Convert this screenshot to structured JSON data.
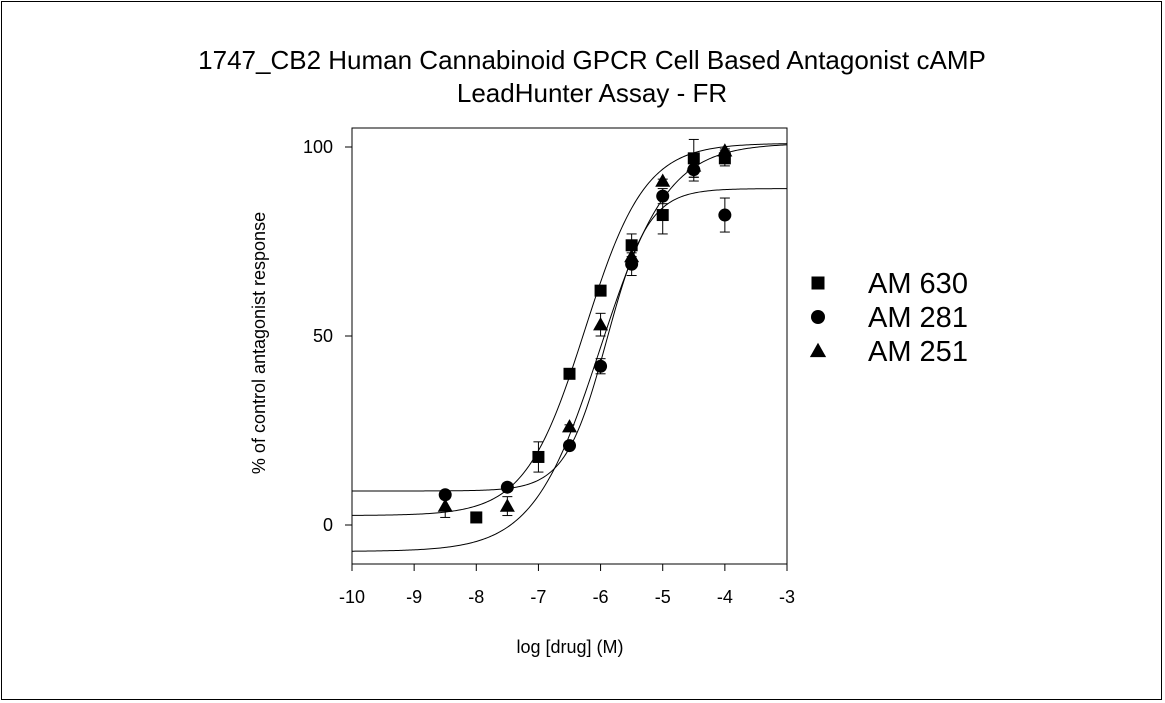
{
  "chart_data": {
    "type": "scatter",
    "title": "1747_CB2 Human Cannabinoid GPCR Cell Based Antagonist cAMP",
    "subtitle": "LeadHunter Assay - FR",
    "xlabel": "log [drug] (M)",
    "ylabel": "% of control antagonist response",
    "xlim": [
      -10,
      -3
    ],
    "ylim": [
      -10,
      105
    ],
    "x_ticks": [
      -10,
      -9,
      -8,
      -7,
      -6,
      -5,
      -4,
      -3
    ],
    "y_ticks": [
      0,
      50,
      100
    ],
    "grid": false,
    "legend_position": "right",
    "series": [
      {
        "name": "AM 630",
        "marker": "square",
        "points": [
          {
            "x": -8.0,
            "y": 2,
            "err": 0.5
          },
          {
            "x": -7.0,
            "y": 18,
            "err": 4
          },
          {
            "x": -6.5,
            "y": 40,
            "err": 0.5
          },
          {
            "x": -6.0,
            "y": 62,
            "err": 0.5
          },
          {
            "x": -5.5,
            "y": 74,
            "err": 3
          },
          {
            "x": -5.0,
            "y": 82,
            "err": 5
          },
          {
            "x": -4.5,
            "y": 97,
            "err": 5
          },
          {
            "x": -4.0,
            "y": 97,
            "err": 2
          }
        ],
        "fit": {
          "bottom": 2.5,
          "top": 101,
          "logEC50": -6.25,
          "hill": 0.9
        }
      },
      {
        "name": "AM 281",
        "marker": "circle",
        "points": [
          {
            "x": -8.5,
            "y": 8,
            "err": 0.5
          },
          {
            "x": -7.5,
            "y": 10,
            "err": 0.5
          },
          {
            "x": -6.5,
            "y": 21,
            "err": 0.5
          },
          {
            "x": -6.0,
            "y": 42,
            "err": 2
          },
          {
            "x": -5.5,
            "y": 69,
            "err": 3
          },
          {
            "x": -5.0,
            "y": 87,
            "err": 2
          },
          {
            "x": -4.5,
            "y": 94,
            "err": 3
          },
          {
            "x": -4.0,
            "y": 82,
            "err": 4.5
          }
        ],
        "fit": {
          "bottom": 9,
          "top": 89,
          "logEC50": -5.9,
          "hill": 1.3
        }
      },
      {
        "name": "AM 251",
        "marker": "triangle",
        "points": [
          {
            "x": -8.5,
            "y": 5,
            "err": 3
          },
          {
            "x": -7.5,
            "y": 5,
            "err": 2.5
          },
          {
            "x": -6.5,
            "y": 26,
            "err": 0.5
          },
          {
            "x": -6.0,
            "y": 53,
            "err": 3
          },
          {
            "x": -5.5,
            "y": 71,
            "err": 2
          },
          {
            "x": -5.0,
            "y": 91,
            "err": 0.5
          },
          {
            "x": -4.5,
            "y": 95,
            "err": 3
          },
          {
            "x": -4.0,
            "y": 99,
            "err": 0.5
          }
        ],
        "fit": {
          "bottom": -7,
          "top": 101,
          "logEC50": -6.0,
          "hill": 0.8
        }
      }
    ]
  }
}
